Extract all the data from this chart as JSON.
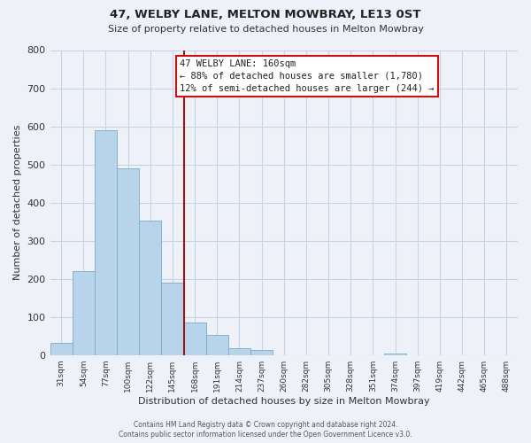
{
  "title": "47, WELBY LANE, MELTON MOWBRAY, LE13 0ST",
  "subtitle": "Size of property relative to detached houses in Melton Mowbray",
  "xlabel": "Distribution of detached houses by size in Melton Mowbray",
  "ylabel": "Number of detached properties",
  "bin_labels": [
    "31sqm",
    "54sqm",
    "77sqm",
    "100sqm",
    "122sqm",
    "145sqm",
    "168sqm",
    "191sqm",
    "214sqm",
    "237sqm",
    "260sqm",
    "282sqm",
    "305sqm",
    "328sqm",
    "351sqm",
    "374sqm",
    "397sqm",
    "419sqm",
    "442sqm",
    "465sqm",
    "488sqm"
  ],
  "bar_heights": [
    33,
    220,
    590,
    490,
    352,
    190,
    85,
    52,
    18,
    13,
    0,
    0,
    0,
    0,
    0,
    5,
    0,
    0,
    0,
    0,
    0
  ],
  "bar_color": "#b8d4ea",
  "bar_edge_color": "#7aaac8",
  "highlight_edge_color": "#aa1111",
  "red_line_bar_index": 6,
  "ylim": [
    0,
    800
  ],
  "yticks": [
    0,
    100,
    200,
    300,
    400,
    500,
    600,
    700,
    800
  ],
  "annotation_title": "47 WELBY LANE: 160sqm",
  "annotation_line1": "← 88% of detached houses are smaller (1,780)",
  "annotation_line2": "12% of semi-detached houses are larger (244) →",
  "annotation_box_color": "#ffffff",
  "annotation_box_edge": "#cc1111",
  "footer_line1": "Contains HM Land Registry data © Crown copyright and database right 2024.",
  "footer_line2": "Contains public sector information licensed under the Open Government Licence v3.0.",
  "grid_color": "#c8d4e4",
  "background_color": "#eef2f8"
}
